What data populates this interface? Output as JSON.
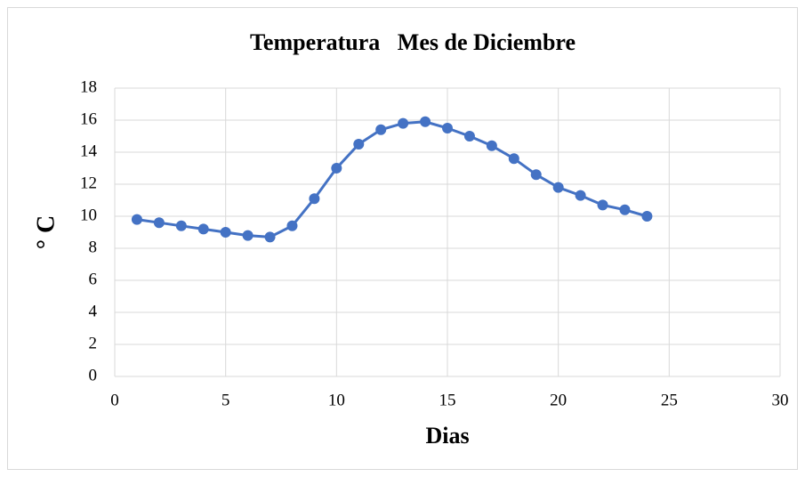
{
  "chart_data": {
    "type": "line",
    "title": "Temperatura   Mes de Diciembre",
    "x_label": "Dias",
    "y_label": "° C",
    "x": [
      1,
      2,
      3,
      4,
      5,
      6,
      7,
      8,
      9,
      10,
      11,
      12,
      13,
      14,
      15,
      16,
      17,
      18,
      19,
      20,
      21,
      22,
      23,
      24
    ],
    "series": [
      {
        "name": "Temperatura",
        "color": "#4472c4",
        "values": [
          9.8,
          9.6,
          9.4,
          9.2,
          9.0,
          8.8,
          8.7,
          9.4,
          11.1,
          13.0,
          14.5,
          15.4,
          15.8,
          15.9,
          15.5,
          15.0,
          14.4,
          13.6,
          12.6,
          11.8,
          11.3,
          10.7,
          10.4,
          10.0
        ]
      }
    ],
    "xlim": [
      0,
      30
    ],
    "xticks": [
      0,
      5,
      10,
      15,
      20,
      25,
      30
    ],
    "ylim": [
      0,
      18
    ],
    "yticks": [
      0,
      2,
      4,
      6,
      8,
      10,
      12,
      14,
      16,
      18
    ],
    "grid": true
  }
}
